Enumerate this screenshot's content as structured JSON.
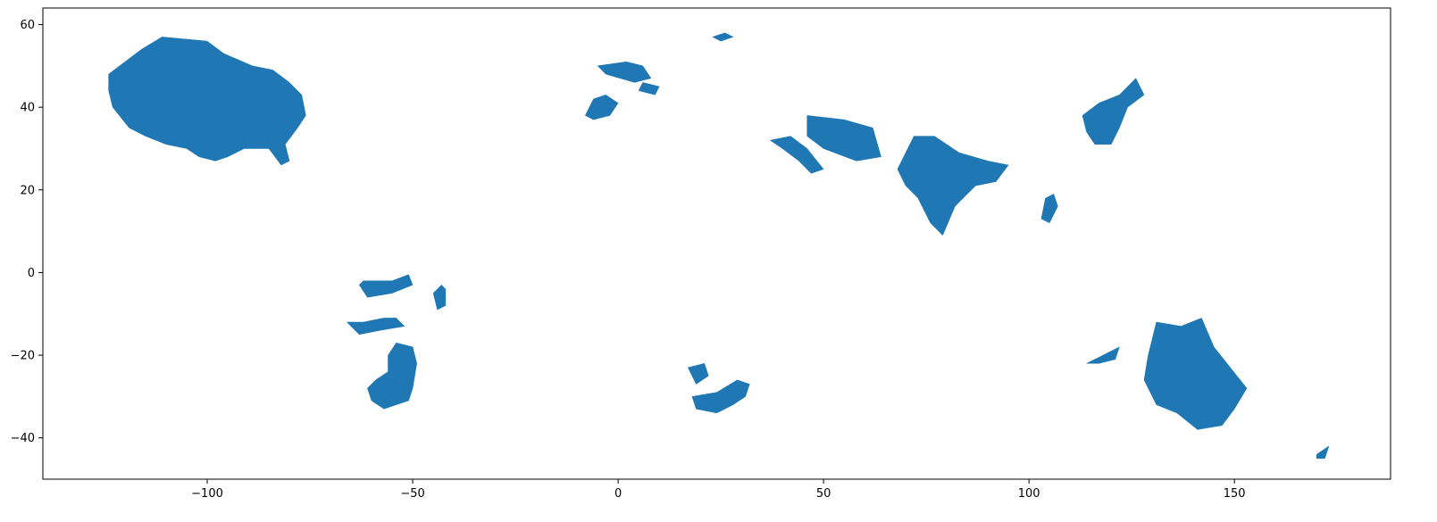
{
  "chart_data": {
    "type": "map",
    "title": "",
    "xlabel": "",
    "ylabel": "",
    "xlim": [
      -140,
      188
    ],
    "ylim": [
      -50,
      64
    ],
    "x_ticks": [
      -100,
      -50,
      0,
      50,
      100,
      150
    ],
    "y_ticks": [
      -40,
      -20,
      0,
      20,
      40,
      60
    ],
    "x_tick_labels": [
      "−100",
      "−50",
      "0",
      "50",
      "100",
      "150"
    ],
    "y_tick_labels": [
      "−40",
      "−20",
      "0",
      "20",
      "40",
      "60"
    ],
    "grid": false,
    "fill_color": "#1f77b4",
    "regions": [
      {
        "name": "north-america",
        "coords": [
          [
            -124,
            48
          ],
          [
            -116,
            54
          ],
          [
            -111,
            57
          ],
          [
            -100,
            56
          ],
          [
            -96,
            53
          ],
          [
            -89,
            50
          ],
          [
            -84,
            49
          ],
          [
            -80,
            46
          ],
          [
            -77,
            43
          ],
          [
            -76,
            38
          ],
          [
            -78,
            35
          ],
          [
            -81,
            31
          ],
          [
            -80,
            27
          ],
          [
            -82,
            26
          ],
          [
            -85,
            30
          ],
          [
            -91,
            30
          ],
          [
            -95,
            28
          ],
          [
            -98,
            27
          ],
          [
            -102,
            28
          ],
          [
            -105,
            30
          ],
          [
            -110,
            31
          ],
          [
            -115,
            33
          ],
          [
            -119,
            35
          ],
          [
            -123,
            40
          ],
          [
            -124,
            44
          ]
        ]
      },
      {
        "name": "south-america-north",
        "coords": [
          [
            -62,
            -2
          ],
          [
            -55,
            -2
          ],
          [
            -51,
            -0.5
          ],
          [
            -50,
            -3
          ],
          [
            -55,
            -5
          ],
          [
            -61,
            -6
          ],
          [
            -63,
            -3
          ]
        ]
      },
      {
        "name": "south-america-central",
        "coords": [
          [
            -62,
            -12
          ],
          [
            -57,
            -11
          ],
          [
            -54,
            -11
          ],
          [
            -52,
            -13
          ],
          [
            -58,
            -14
          ],
          [
            -63,
            -15
          ],
          [
            -66,
            -12
          ]
        ]
      },
      {
        "name": "south-america-east",
        "coords": [
          [
            -45,
            -5
          ],
          [
            -43,
            -3
          ],
          [
            -42,
            -4
          ],
          [
            -42,
            -8
          ],
          [
            -44,
            -9
          ]
        ]
      },
      {
        "name": "south-america-south",
        "coords": [
          [
            -54,
            -17
          ],
          [
            -50,
            -18
          ],
          [
            -49,
            -22
          ],
          [
            -50,
            -28
          ],
          [
            -51,
            -31
          ],
          [
            -54,
            -32
          ],
          [
            -57,
            -33
          ],
          [
            -60,
            -31
          ],
          [
            -61,
            -28
          ],
          [
            -59,
            -26
          ],
          [
            -56,
            -24
          ],
          [
            -56,
            -20
          ]
        ]
      },
      {
        "name": "europe-west",
        "coords": [
          [
            -5,
            50
          ],
          [
            -3,
            48
          ],
          [
            4,
            46
          ],
          [
            8,
            47
          ],
          [
            6,
            50
          ],
          [
            2,
            51
          ]
        ]
      },
      {
        "name": "europe-central",
        "coords": [
          [
            5,
            44
          ],
          [
            9,
            43
          ],
          [
            10,
            45
          ],
          [
            6,
            46
          ]
        ]
      },
      {
        "name": "iberia",
        "coords": [
          [
            -6,
            42
          ],
          [
            -3,
            43
          ],
          [
            0,
            41
          ],
          [
            -2,
            38
          ],
          [
            -6,
            37
          ],
          [
            -8,
            38
          ]
        ]
      },
      {
        "name": "scandinavia",
        "coords": [
          [
            23,
            57
          ],
          [
            26,
            58
          ],
          [
            28,
            57
          ],
          [
            25,
            56
          ]
        ]
      },
      {
        "name": "southern-africa",
        "coords": [
          [
            18,
            -30
          ],
          [
            24,
            -29
          ],
          [
            29,
            -26
          ],
          [
            32,
            -27
          ],
          [
            31,
            -30
          ],
          [
            28,
            -32
          ],
          [
            24,
            -34
          ],
          [
            19,
            -33
          ]
        ]
      },
      {
        "name": "southern-africa-west",
        "coords": [
          [
            17,
            -23
          ],
          [
            21,
            -22
          ],
          [
            22,
            -25
          ],
          [
            19,
            -27
          ]
        ]
      },
      {
        "name": "middle-east",
        "coords": [
          [
            37,
            32
          ],
          [
            42,
            33
          ],
          [
            46,
            30
          ],
          [
            50,
            25
          ],
          [
            47,
            24
          ],
          [
            44,
            27
          ],
          [
            40,
            30
          ]
        ]
      },
      {
        "name": "iran",
        "coords": [
          [
            46,
            38
          ],
          [
            55,
            37
          ],
          [
            62,
            35
          ],
          [
            64,
            28
          ],
          [
            58,
            27
          ],
          [
            50,
            30
          ],
          [
            46,
            33
          ]
        ]
      },
      {
        "name": "india",
        "coords": [
          [
            68,
            25
          ],
          [
            72,
            33
          ],
          [
            77,
            33
          ],
          [
            83,
            29
          ],
          [
            90,
            27
          ],
          [
            95,
            26
          ],
          [
            92,
            22
          ],
          [
            87,
            21
          ],
          [
            82,
            16
          ],
          [
            79,
            9
          ],
          [
            76,
            12
          ],
          [
            73,
            18
          ],
          [
            70,
            21
          ]
        ]
      },
      {
        "name": "east-china",
        "coords": [
          [
            113,
            38
          ],
          [
            117,
            41
          ],
          [
            122,
            43
          ],
          [
            126,
            47
          ],
          [
            128,
            43
          ],
          [
            124,
            40
          ],
          [
            122,
            35
          ],
          [
            120,
            31
          ],
          [
            116,
            31
          ],
          [
            114,
            34
          ]
        ]
      },
      {
        "name": "southeast-asia",
        "coords": [
          [
            104,
            18
          ],
          [
            106,
            19
          ],
          [
            107,
            16
          ],
          [
            105,
            12
          ],
          [
            103,
            13
          ]
        ]
      },
      {
        "name": "australia",
        "coords": [
          [
            131,
            -12
          ],
          [
            137,
            -13
          ],
          [
            142,
            -11
          ],
          [
            145,
            -18
          ],
          [
            153,
            -28
          ],
          [
            150,
            -33
          ],
          [
            147,
            -37
          ],
          [
            141,
            -38
          ],
          [
            136,
            -34
          ],
          [
            131,
            -32
          ],
          [
            128,
            -26
          ],
          [
            129,
            -20
          ]
        ]
      },
      {
        "name": "western-australia",
        "coords": [
          [
            114,
            -22
          ],
          [
            118,
            -20
          ],
          [
            122,
            -18
          ],
          [
            121,
            -21
          ],
          [
            117,
            -22
          ]
        ]
      },
      {
        "name": "new-zealand",
        "coords": [
          [
            170,
            -44
          ],
          [
            173,
            -42
          ],
          [
            172,
            -45
          ],
          [
            170,
            -45
          ]
        ]
      }
    ]
  }
}
